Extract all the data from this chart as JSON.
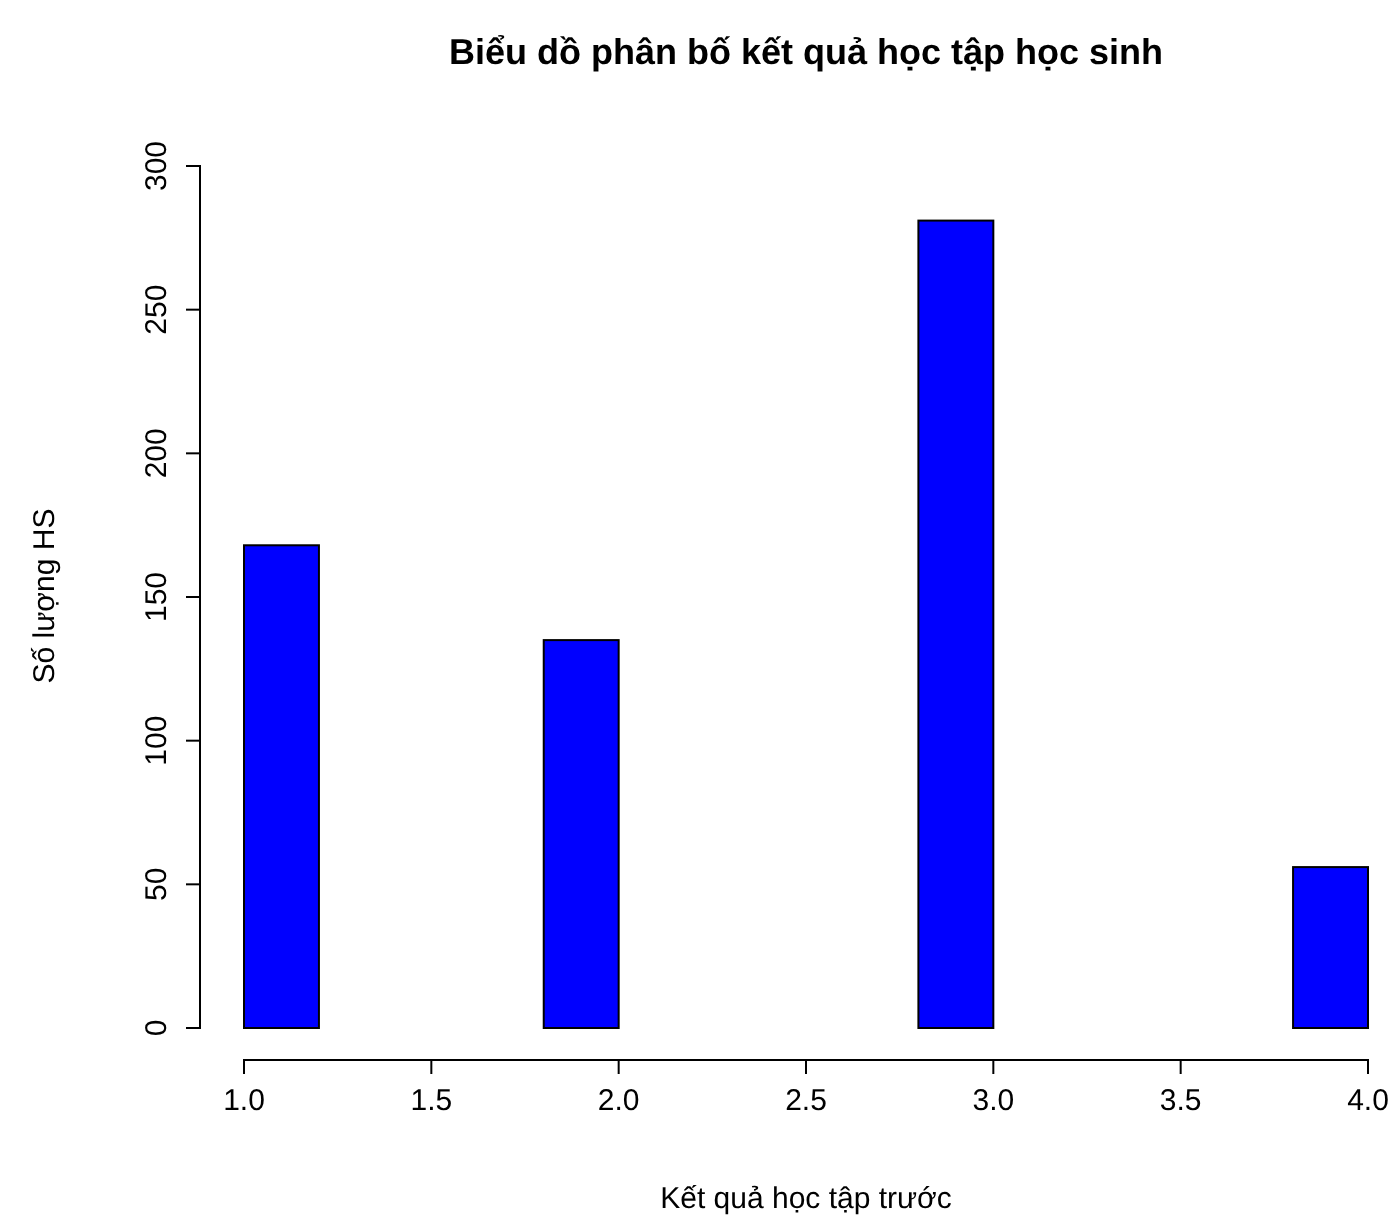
{
  "chart_data": {
    "type": "histogram",
    "title": "Biểu dồ phân bố kết quả học tập học sinh",
    "xlabel": "Kết quả học tập trước",
    "ylabel": "Số lượng HS",
    "bins": [
      1.0,
      1.2,
      1.4,
      1.6,
      1.8,
      2.0,
      2.2,
      2.4,
      2.6,
      2.8,
      3.0,
      3.2,
      3.4,
      3.6,
      3.8,
      4.0
    ],
    "values": [
      168,
      0,
      0,
      0,
      135,
      0,
      0,
      0,
      0,
      281,
      0,
      0,
      0,
      0,
      56
    ],
    "color": "#0000ff",
    "xlim": [
      1.0,
      4.0
    ],
    "xticks": [
      {
        "value": 1,
        "label": "1.0"
      },
      {
        "value": 1.5,
        "label": "1.5"
      },
      {
        "value": 2,
        "label": "2.0"
      },
      {
        "value": 2.5,
        "label": "2.5"
      },
      {
        "value": 3,
        "label": "3.0"
      },
      {
        "value": 3.5,
        "label": "3.5"
      },
      {
        "value": 4,
        "label": "4.0"
      }
    ],
    "ylim": [
      0,
      300
    ],
    "yticks": [
      0,
      50,
      100,
      150,
      200,
      250,
      300
    ]
  }
}
